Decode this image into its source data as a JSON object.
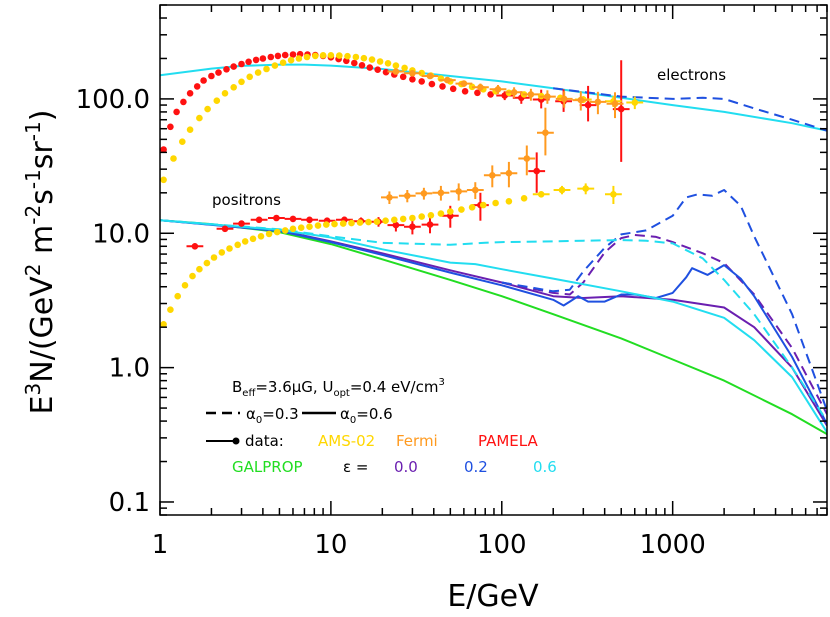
{
  "chart_data": {
    "type": "line",
    "xlabel": "E/GeV",
    "ylabel_main": "E",
    "ylabel_sup1": "3",
    "ylabel_mid": "N/(GeV",
    "ylabel_sup2": "2",
    "ylabel_m": " m",
    "ylabel_sup3": "-2",
    "ylabel_s": "s",
    "ylabel_sup4": "-1",
    "ylabel_sr": "sr",
    "ylabel_sup5": "-1",
    "ylabel_end": ")",
    "x_scale": "log",
    "y_scale": "log",
    "xlim": [
      1,
      8000
    ],
    "ylim": [
      0.08,
      500
    ],
    "x_ticks": [
      {
        "value": 1,
        "label": "1"
      },
      {
        "value": 10,
        "label": "10"
      },
      {
        "value": 100,
        "label": "100"
      },
      {
        "value": 1000,
        "label": "1000"
      }
    ],
    "y_ticks": [
      {
        "value": 0.1,
        "label": "0.1"
      },
      {
        "value": 1,
        "label": "1.0"
      },
      {
        "value": 10,
        "label": "10.0"
      },
      {
        "value": 100,
        "label": "100.0"
      }
    ],
    "annotations": {
      "electrons": "electrons",
      "positrons": "positrons",
      "params_B": "B",
      "params_B_sub": "eff",
      "params_B_val": "=3.6μG, U",
      "params_U_sub": "opt",
      "params_U_val": "=0.4 eV/cm",
      "params_U_sup": "3",
      "alpha_dash_label": "α",
      "alpha_sub": "0",
      "alpha_dash_val": "=0.3",
      "alpha_solid_val": "=0.6",
      "data_label": "data:",
      "data_ams": "AMS-02",
      "data_fermi": "Fermi",
      "data_pamela": "PAMELA",
      "galprop_label": "GALPROP",
      "eps_label": "ε =",
      "eps_0": "0.0",
      "eps_2": "0.2",
      "eps_6": "0.6"
    },
    "colors": {
      "ams": "#FFD700",
      "fermi": "#FF9A1F",
      "pamela": "#FF1111",
      "galprop": "#22DD22",
      "eps0": "#6A1FB0",
      "eps02": "#1F50E0",
      "eps06": "#22DDF0"
    },
    "series": [
      {
        "id": "electron-model",
        "color": "#22DDF0",
        "style": "solid",
        "x": [
          1,
          2,
          3,
          5,
          7,
          10,
          20,
          50,
          100,
          200,
          500,
          1000,
          2000,
          5000,
          8000
        ],
        "y": [
          150,
          168,
          176,
          180,
          180,
          177,
          167,
          148,
          135,
          120,
          102,
          90,
          80,
          66,
          58
        ]
      },
      {
        "id": "electron-dash-0.2",
        "color": "#1F50E0",
        "style": "dashed",
        "x": [
          200,
          500,
          1000,
          1500,
          2000,
          3000,
          5000,
          8000
        ],
        "y": [
          120,
          104,
          100,
          102,
          100,
          85,
          70,
          58
        ]
      },
      {
        "id": "positron-galprop",
        "color": "#22DD22",
        "style": "solid",
        "x": [
          1,
          2,
          5,
          10,
          20,
          50,
          100,
          200,
          500,
          1000,
          2000,
          5000,
          8000
        ],
        "y": [
          12.5,
          11.7,
          10.2,
          8.3,
          6.4,
          4.5,
          3.4,
          2.5,
          1.65,
          1.15,
          0.8,
          0.45,
          0.32
        ]
      },
      {
        "id": "positron-eps0-solid",
        "color": "#6A1FB0",
        "style": "solid",
        "x": [
          1,
          5,
          10,
          20,
          50,
          100,
          200,
          300,
          500,
          1000,
          2000,
          3000,
          5000,
          8000
        ],
        "y": [
          12.5,
          10.5,
          8.7,
          7.1,
          5.3,
          4.3,
          3.4,
          3.3,
          3.4,
          3.2,
          2.8,
          2.0,
          1.0,
          0.37
        ]
      },
      {
        "id": "positron-eps0-dash",
        "color": "#6A1FB0",
        "style": "dashed",
        "x": [
          100,
          200,
          250,
          300,
          400,
          500,
          600,
          800,
          1000,
          1500,
          2000,
          3000,
          5000,
          8000
        ],
        "y": [
          4.3,
          3.6,
          3.5,
          4.3,
          7.2,
          9.2,
          9.7,
          9.4,
          8.6,
          7.1,
          6.0,
          3.5,
          1.4,
          0.45
        ]
      },
      {
        "id": "positron-eps02-solid",
        "color": "#1F50E0",
        "style": "solid",
        "x": [
          1,
          5,
          10,
          20,
          50,
          100,
          200,
          230,
          250,
          280,
          320,
          400,
          500,
          600,
          800,
          1000,
          1200,
          1300,
          1600,
          2000,
          2500,
          3000,
          5000,
          8000
        ],
        "y": [
          12.5,
          10.4,
          8.6,
          6.9,
          5.1,
          4.1,
          3.2,
          2.9,
          3.1,
          3.4,
          3.1,
          3.1,
          3.5,
          3.5,
          3.3,
          3.6,
          4.7,
          5.5,
          4.9,
          5.8,
          4.6,
          3.4,
          1.2,
          0.38
        ]
      },
      {
        "id": "positron-eps02-dash",
        "color": "#1F50E0",
        "style": "dashed",
        "x": [
          100,
          200,
          250,
          300,
          400,
          500,
          700,
          1000,
          1200,
          1400,
          1700,
          2000,
          2500,
          3000,
          5000,
          8000
        ],
        "y": [
          4.3,
          3.7,
          3.8,
          5.2,
          7.8,
          9.8,
          10.5,
          13.5,
          18.5,
          19.5,
          19.0,
          21.0,
          16.0,
          9.5,
          2.5,
          0.48
        ]
      },
      {
        "id": "positron-eps06-solid",
        "color": "#22DDF0",
        "style": "solid",
        "x": [
          1,
          5,
          10,
          20,
          50,
          70,
          100,
          200,
          500,
          1000,
          2000,
          3000,
          5000,
          8000
        ],
        "y": [
          12.5,
          10.6,
          9.3,
          7.6,
          6.05,
          5.9,
          5.4,
          4.6,
          3.7,
          3.1,
          2.35,
          1.6,
          0.85,
          0.33
        ]
      },
      {
        "id": "positron-eps06-dash",
        "color": "#22DDF0",
        "style": "dashed",
        "x": [
          1,
          5,
          10,
          20,
          50,
          80,
          100,
          200,
          300,
          500,
          700,
          1000,
          1500,
          2000,
          3000,
          5000,
          8000
        ],
        "y": [
          12.5,
          10.7,
          9.5,
          8.5,
          8.2,
          8.5,
          8.6,
          8.7,
          8.8,
          8.9,
          8.8,
          8.4,
          6.5,
          4.5,
          2.5,
          1.0,
          0.4
        ]
      }
    ],
    "data_points": [
      {
        "id": "pamela-electrons",
        "color": "#FF1111",
        "x": [
          1.05,
          1.15,
          1.25,
          1.37,
          1.5,
          1.65,
          1.8,
          2.0,
          2.2,
          2.45,
          2.7,
          3.0,
          3.3,
          3.65,
          4.0,
          4.45,
          4.9,
          5.4,
          6.0,
          6.6,
          7.3,
          8.1,
          9.0,
          10.0,
          11.1,
          12.3,
          13.7,
          15.2,
          16.9,
          18.8,
          21.0,
          23.5,
          26.5,
          30.0,
          34.0,
          39.0,
          45.0,
          52.0,
          61.0,
          72.0,
          86.0,
          104.0,
          130.0,
          170.0,
          230.0,
          320.0,
          500.0
        ],
        "y": [
          42,
          62,
          80,
          95,
          110,
          124,
          137,
          148,
          157,
          166,
          174,
          182,
          189,
          195,
          200,
          205,
          209,
          212,
          214,
          215,
          214,
          212,
          209,
          204,
          198,
          192,
          185,
          178,
          171,
          165,
          158,
          152,
          146,
          140,
          135,
          129,
          124,
          119,
          114,
          111,
          108,
          106,
          102,
          99,
          96,
          90,
          84
        ],
        "yerr_lo": [
          0,
          0,
          0,
          0,
          0,
          0,
          0,
          0,
          0,
          0,
          0,
          0,
          0,
          0,
          0,
          0,
          0,
          0,
          0,
          0,
          0,
          0,
          0,
          0,
          0,
          0,
          0,
          0,
          0,
          0,
          0,
          0,
          0,
          0,
          0,
          0,
          0,
          0,
          0,
          0,
          0,
          8,
          10,
          14,
          16,
          22,
          50
        ],
        "yerr_hi": [
          0,
          0,
          0,
          0,
          0,
          0,
          0,
          0,
          0,
          0,
          0,
          0,
          0,
          0,
          0,
          0,
          0,
          0,
          0,
          0,
          0,
          0,
          0,
          0,
          0,
          0,
          0,
          0,
          0,
          0,
          0,
          0,
          0,
          0,
          0,
          0,
          0,
          0,
          0,
          0,
          0,
          8,
          12,
          18,
          22,
          35,
          110
        ]
      },
      {
        "id": "ams-electrons",
        "color": "#FFD700",
        "x": [
          1.05,
          1.2,
          1.35,
          1.5,
          1.7,
          1.9,
          2.15,
          2.4,
          2.7,
          3.0,
          3.35,
          3.75,
          4.2,
          4.7,
          5.25,
          5.85,
          6.5,
          7.25,
          8.1,
          9.0,
          10.0,
          11.2,
          12.5,
          14.0,
          15.6,
          17.4,
          19.4,
          21.6,
          24.0,
          27.0,
          30.0,
          34.0,
          38.5,
          44.0,
          50.0,
          58.0,
          67.0,
          78.0,
          92.0,
          110.0,
          135.0,
          170.0,
          220.0,
          300.0,
          450.0,
          600.0
        ],
        "y": [
          25,
          36,
          48,
          59,
          72,
          84,
          97,
          110,
          122,
          134,
          146,
          157,
          167,
          177,
          186,
          194,
          200,
          205,
          209,
          211,
          211,
          210,
          208,
          205,
          201,
          196,
          190,
          184,
          177,
          170,
          163,
          156,
          149,
          142,
          135,
          129,
          123,
          118,
          114,
          111,
          108,
          105,
          102,
          99,
          96,
          94
        ],
        "yerr_lo": [
          0,
          0,
          0,
          0,
          0,
          0,
          0,
          0,
          0,
          0,
          0,
          0,
          0,
          0,
          0,
          0,
          0,
          0,
          0,
          0,
          0,
          0,
          0,
          0,
          0,
          0,
          0,
          0,
          0,
          0,
          0,
          0,
          0,
          0,
          0,
          0,
          0,
          0,
          0,
          0,
          0,
          0,
          0,
          6,
          9,
          10
        ],
        "yerr_hi": [
          0,
          0,
          0,
          0,
          0,
          0,
          0,
          0,
          0,
          0,
          0,
          0,
          0,
          0,
          0,
          0,
          0,
          0,
          0,
          0,
          0,
          0,
          0,
          0,
          0,
          0,
          0,
          0,
          0,
          0,
          0,
          0,
          0,
          0,
          0,
          0,
          0,
          0,
          0,
          0,
          0,
          0,
          0,
          6,
          9,
          10
        ]
      },
      {
        "id": "fermi-electrons",
        "color": "#FF9A1F",
        "x": [
          24,
          30,
          38,
          48,
          60,
          75,
          95,
          118,
          148,
          185,
          232,
          290,
          365,
          460
        ],
        "y": [
          160,
          155,
          148,
          138,
          130,
          122,
          118,
          112,
          108,
          104,
          100,
          98,
          95,
          92
        ],
        "yerr_lo": [
          5,
          5,
          5,
          6,
          7,
          8,
          9,
          10,
          11,
          12,
          14,
          16,
          18,
          20
        ],
        "yerr_hi": [
          5,
          5,
          5,
          6,
          7,
          8,
          9,
          10,
          11,
          12,
          14,
          16,
          18,
          20
        ]
      },
      {
        "id": "pamela-positrons",
        "color": "#FF1111",
        "x": [
          1.6,
          2.4,
          3.0,
          3.8,
          4.8,
          6.0,
          7.5,
          9.5,
          12.0,
          15.0,
          19.0,
          24.0,
          30.0,
          38.0,
          50.0,
          75.0,
          160.0
        ],
        "y": [
          8.0,
          10.8,
          11.8,
          12.6,
          13.0,
          12.8,
          12.6,
          12.4,
          12.6,
          12.3,
          12.2,
          11.5,
          11.2,
          11.6,
          13.5,
          16.2,
          29.0
        ],
        "yerr_lo": [
          0.4,
          0.4,
          0.4,
          0.4,
          0.5,
          0.5,
          0.5,
          0.6,
          0.7,
          0.8,
          1.0,
          1.2,
          1.4,
          1.6,
          2.5,
          3.8,
          9.0
        ],
        "yerr_hi": [
          0.4,
          0.4,
          0.4,
          0.4,
          0.5,
          0.5,
          0.5,
          0.6,
          0.7,
          0.8,
          1.0,
          1.2,
          1.4,
          1.6,
          2.5,
          3.8,
          11.0
        ]
      },
      {
        "id": "ams-positrons",
        "color": "#FFD700",
        "x": [
          1.05,
          1.15,
          1.27,
          1.4,
          1.55,
          1.7,
          1.88,
          2.07,
          2.3,
          2.55,
          2.85,
          3.15,
          3.5,
          3.9,
          4.35,
          4.85,
          5.4,
          6.0,
          6.7,
          7.5,
          8.4,
          9.4,
          10.5,
          11.8,
          13.2,
          14.8,
          16.6,
          18.6,
          20.9,
          23.5,
          26.5,
          30.0,
          34.0,
          38.5,
          44.0,
          50.0,
          58.0,
          67.0,
          78.0,
          92.0,
          110.0,
          135.0,
          170.0,
          225.0,
          310.0,
          450.0
        ],
        "y": [
          2.1,
          2.7,
          3.4,
          4.1,
          4.8,
          5.4,
          6.0,
          6.6,
          7.2,
          7.7,
          8.2,
          8.7,
          9.1,
          9.5,
          9.9,
          10.2,
          10.5,
          10.8,
          11.0,
          11.2,
          11.4,
          11.6,
          11.7,
          11.8,
          11.9,
          12.0,
          12.1,
          12.2,
          12.4,
          12.6,
          12.8,
          13.0,
          13.3,
          13.6,
          14.0,
          14.5,
          15.0,
          15.6,
          16.2,
          16.8,
          17.3,
          18.2,
          19.5,
          21.0,
          21.5,
          19.5
        ],
        "yerr_lo": [
          0,
          0,
          0,
          0,
          0,
          0,
          0,
          0,
          0,
          0,
          0,
          0,
          0,
          0,
          0,
          0,
          0,
          0,
          0,
          0,
          0,
          0,
          0,
          0,
          0,
          0,
          0,
          0,
          0,
          0,
          0,
          0,
          0,
          0,
          0,
          0,
          0,
          0,
          0,
          0,
          0,
          0,
          1.0,
          1.5,
          2.0,
          3.0
        ],
        "yerr_hi": [
          0,
          0,
          0,
          0,
          0,
          0,
          0,
          0,
          0,
          0,
          0,
          0,
          0,
          0,
          0,
          0,
          0,
          0,
          0,
          0,
          0,
          0,
          0,
          0,
          0,
          0,
          0,
          0,
          0,
          0,
          0,
          0,
          0,
          0,
          0,
          0,
          0,
          0,
          0,
          0,
          0,
          0,
          1.0,
          1.5,
          2.0,
          3.0
        ]
      },
      {
        "id": "fermi-positrons",
        "color": "#FF9A1F",
        "x": [
          22,
          28,
          35,
          44,
          56,
          70,
          88,
          110,
          140,
          180
        ],
        "y": [
          18.5,
          19.0,
          19.8,
          20.0,
          20.5,
          21.0,
          27.0,
          28.0,
          36.0,
          56.0
        ],
        "yerr_lo": [
          2,
          2,
          2,
          2.5,
          3,
          3,
          5,
          6,
          9,
          18
        ],
        "yerr_hi": [
          2,
          2,
          2,
          2.5,
          3,
          3,
          5,
          6,
          9,
          30
        ]
      }
    ]
  }
}
